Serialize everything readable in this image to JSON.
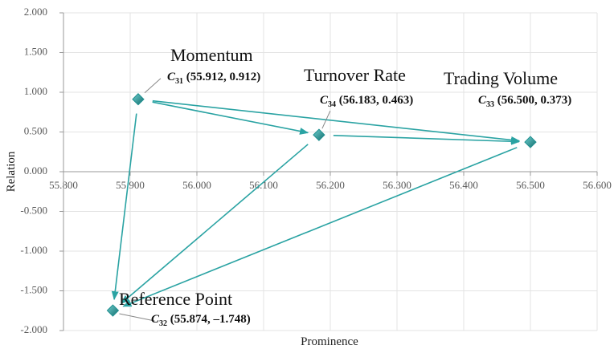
{
  "chart_data": {
    "type": "scatter",
    "xlabel": "Prominence",
    "ylabel": "Relation",
    "labels": [
      "Momentum",
      "Reference Point",
      "Trading Volume",
      "Turnover Rate"
    ],
    "codes": [
      {
        "letter": "C",
        "sub": "31"
      },
      {
        "letter": "C",
        "sub": "32"
      },
      {
        "letter": "C",
        "sub": "33"
      },
      {
        "letter": "C",
        "sub": "34"
      }
    ],
    "x": [
      55.912,
      55.874,
      56.5,
      56.183
    ],
    "values": [
      0.912,
      -1.748,
      0.373,
      0.463
    ],
    "value_labels": [
      " (55.912, 0.912)",
      " (55.874, –1.748)",
      " (56.500, 0.373)",
      " (56.183, 0.463)"
    ],
    "arrows": [
      [
        0,
        3
      ],
      [
        0,
        2
      ],
      [
        0,
        1
      ],
      [
        3,
        2
      ],
      [
        3,
        1
      ],
      [
        2,
        1
      ]
    ],
    "color": "#1f8f8f",
    "arrow_color": "#2aa3a3",
    "xlim": [
      55.8,
      56.6
    ],
    "xticks": [
      {
        "value": 55.8,
        "label": "55.800"
      },
      {
        "value": 55.9,
        "label": "55.900"
      },
      {
        "value": 56.0,
        "label": "56.000"
      },
      {
        "value": 56.1,
        "label": "56.100"
      },
      {
        "value": 56.2,
        "label": "56.200"
      },
      {
        "value": 56.3,
        "label": "56.300"
      },
      {
        "value": 56.4,
        "label": "56.400"
      },
      {
        "value": 56.5,
        "label": "56.500"
      },
      {
        "value": 56.6,
        "label": "56.600"
      }
    ],
    "ylim": [
      -2,
      2
    ],
    "yticks": [
      {
        "value": 2,
        "label": "2.000"
      },
      {
        "value": 1.5,
        "label": "1.500"
      },
      {
        "value": 1,
        "label": "1.000"
      },
      {
        "value": 0.5,
        "label": "0.500"
      },
      {
        "value": 0,
        "label": "0.000"
      },
      {
        "value": -0.5,
        "label": "-0.500"
      },
      {
        "value": -1,
        "label": "-1.000"
      },
      {
        "value": -1.5,
        "label": "-1.500"
      },
      {
        "value": -2,
        "label": "-2.000"
      }
    ],
    "grid": true
  }
}
